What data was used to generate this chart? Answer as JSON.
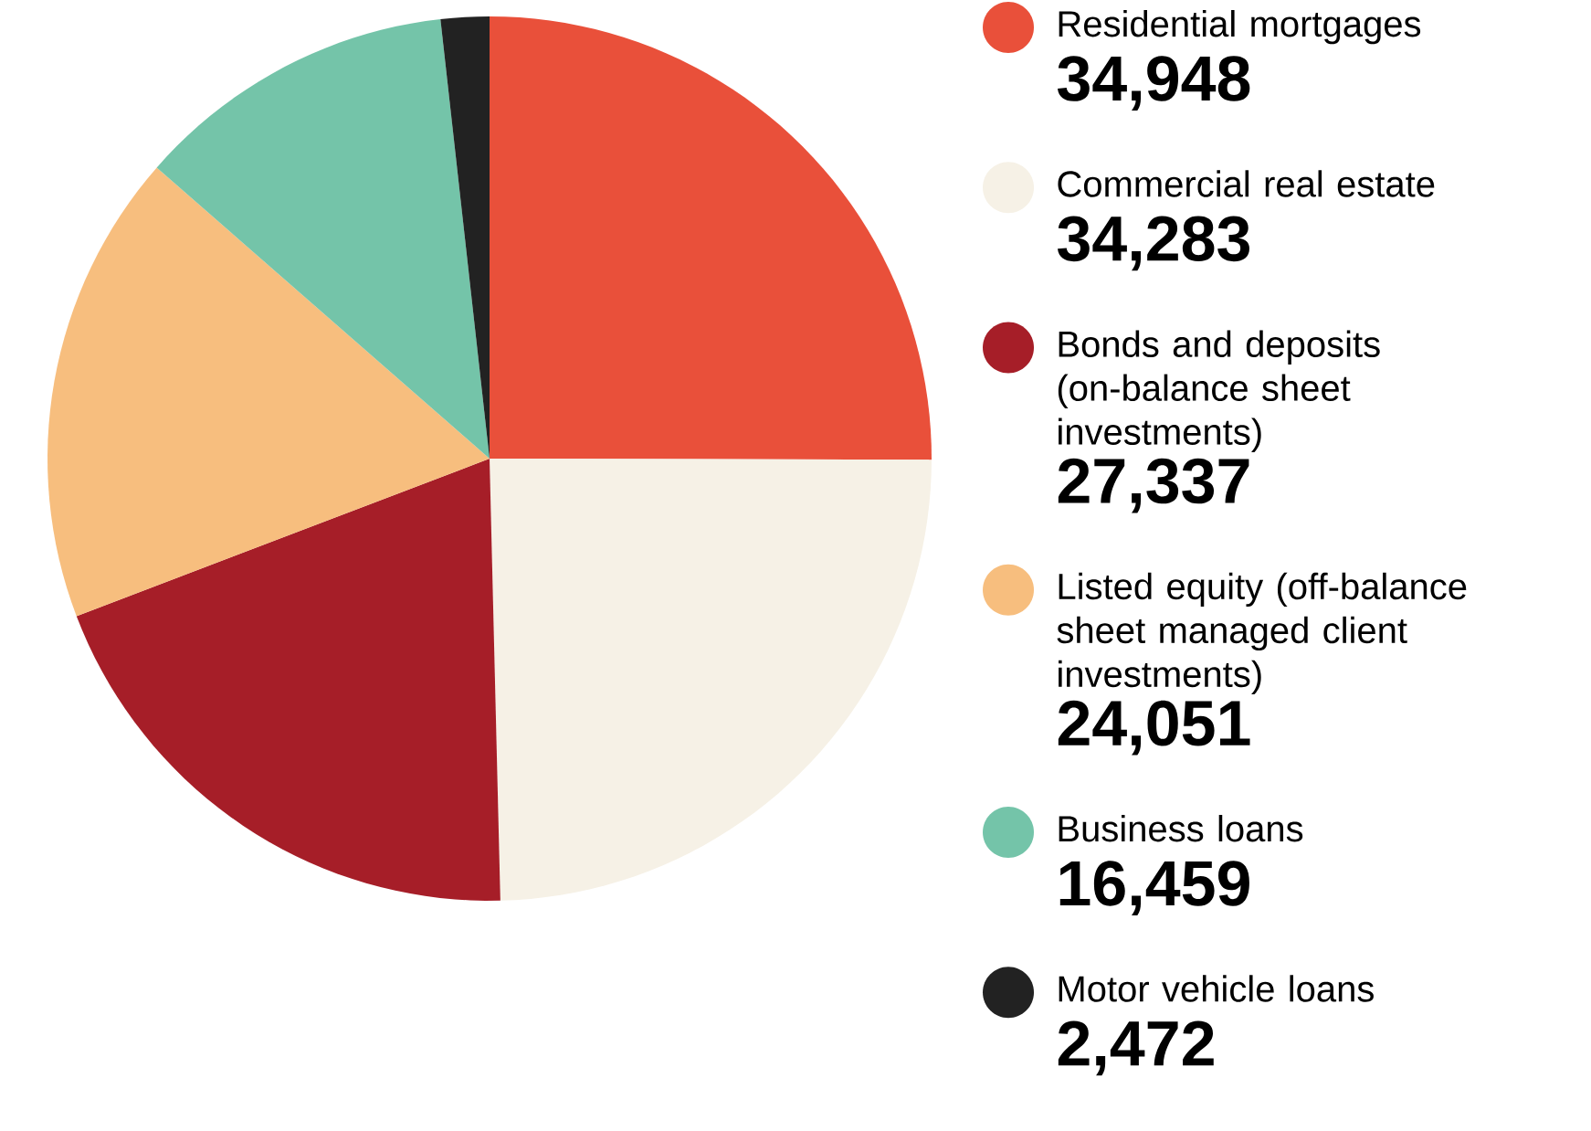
{
  "chart_data": {
    "type": "pie",
    "categories": [
      "Residential mortgages",
      "Commercial real estate",
      "Bonds and deposits (on-balance sheet investments)",
      "Listed equity (off-balance sheet managed client investments)",
      "Business loans",
      "Motor vehicle loans"
    ],
    "values": [
      34948,
      34283,
      27337,
      24051,
      16459,
      2472
    ],
    "value_labels": [
      "34,948",
      "34,283",
      "27,337",
      "24,051",
      "16,459",
      "2,472"
    ],
    "colors": [
      "#e9503a",
      "#f6f1e6",
      "#a61e28",
      "#f7be7e",
      "#74c4a9",
      "#222222"
    ],
    "legend": "right"
  }
}
